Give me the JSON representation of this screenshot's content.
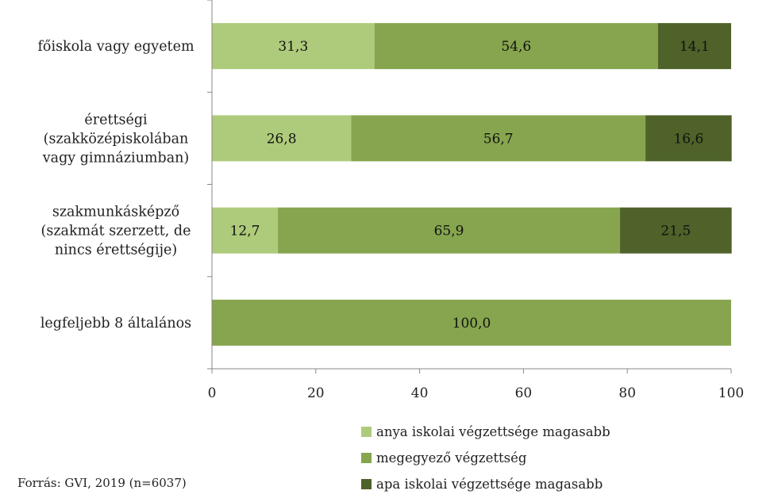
{
  "chart_data": {
    "type": "bar",
    "orientation": "horizontal",
    "stacked": true,
    "categories": [
      [
        "főiskola vagy egyetem"
      ],
      [
        "érettségi",
        "(szakközépiskolában",
        "vagy gimnáziumban)"
      ],
      [
        "szakmunkásképző",
        "(szakmát szerzett, de",
        "nincs érettségije)"
      ],
      [
        "legfeljebb 8 általános"
      ]
    ],
    "series": [
      {
        "name": "anya iskolai végzettsége magasabb",
        "color": "#aecb7b",
        "values": [
          31.3,
          26.8,
          12.7,
          0
        ]
      },
      {
        "name": "megegyező végzettség",
        "color": "#86a54e",
        "values": [
          54.6,
          56.7,
          65.9,
          100.0
        ]
      },
      {
        "name": "apa iskolai végzettsége magasabb",
        "color": "#4e6229",
        "values": [
          14.1,
          16.6,
          21.5,
          0
        ]
      }
    ],
    "data_labels": [
      [
        "31,3",
        "54,6",
        "14,1"
      ],
      [
        "26,8",
        "56,7",
        "16,6"
      ],
      [
        "12,7",
        "65,9",
        "21,5"
      ],
      [
        "",
        "100,0",
        ""
      ]
    ],
    "xlim": [
      0,
      100
    ],
    "xticks": [
      "0",
      "20",
      "40",
      "60",
      "80",
      "100"
    ],
    "grid": false,
    "legend_position": "bottom-right"
  },
  "source": "Forrás: GVI, 2019 (n=6037)"
}
